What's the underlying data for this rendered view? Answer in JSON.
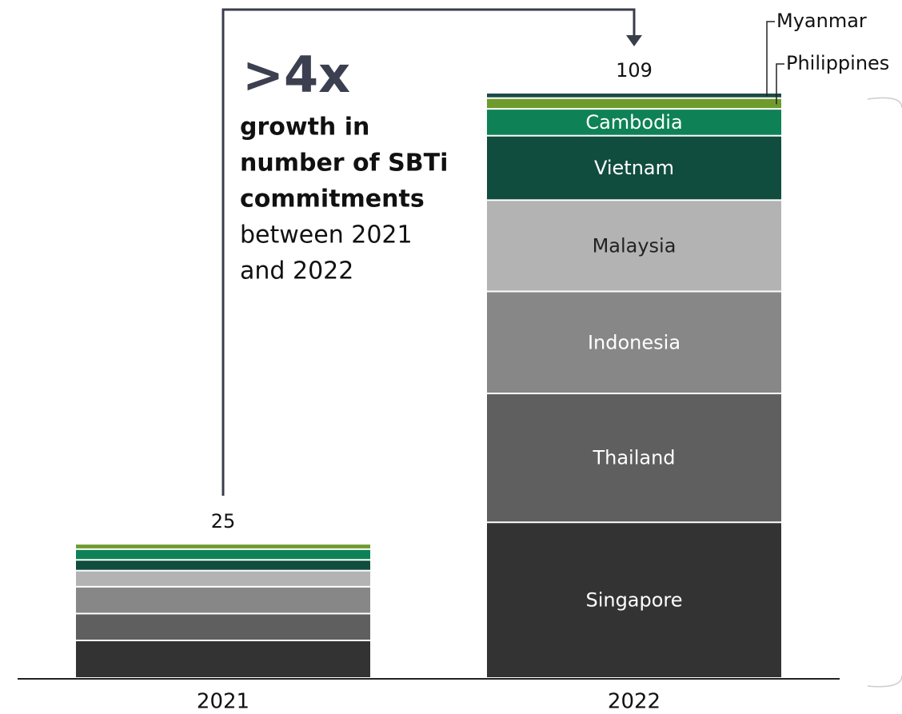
{
  "chart_data": {
    "type": "stacked_bar",
    "categories": [
      "2021",
      "2022"
    ],
    "totals": [
      25,
      109
    ],
    "series": [
      {
        "name": "Singapore",
        "color": "#333333",
        "values": [
          7,
          29
        ]
      },
      {
        "name": "Thailand",
        "color": "#5f5f5f",
        "values": [
          5,
          24
        ]
      },
      {
        "name": "Indonesia",
        "color": "#878787",
        "values": [
          5,
          19
        ]
      },
      {
        "name": "Malaysia",
        "color": "#b3b3b3",
        "values": [
          3,
          17
        ]
      },
      {
        "name": "Vietnam",
        "color": "#114d3e",
        "values": [
          2,
          12
        ]
      },
      {
        "name": "Cambodia",
        "color": "#0e8256",
        "values": [
          2,
          5
        ]
      },
      {
        "name": "Philippines",
        "color": "#6f9b2d",
        "values": [
          1,
          2
        ]
      },
      {
        "name": "Myanmar",
        "color": "#1d4b48",
        "values": [
          0,
          1
        ]
      }
    ],
    "annotation": {
      "headline": ">4x",
      "bold_lines": [
        "growth in",
        "number of SBTi",
        "commitments"
      ],
      "lines": [
        "between 2021",
        "and 2022"
      ]
    }
  }
}
